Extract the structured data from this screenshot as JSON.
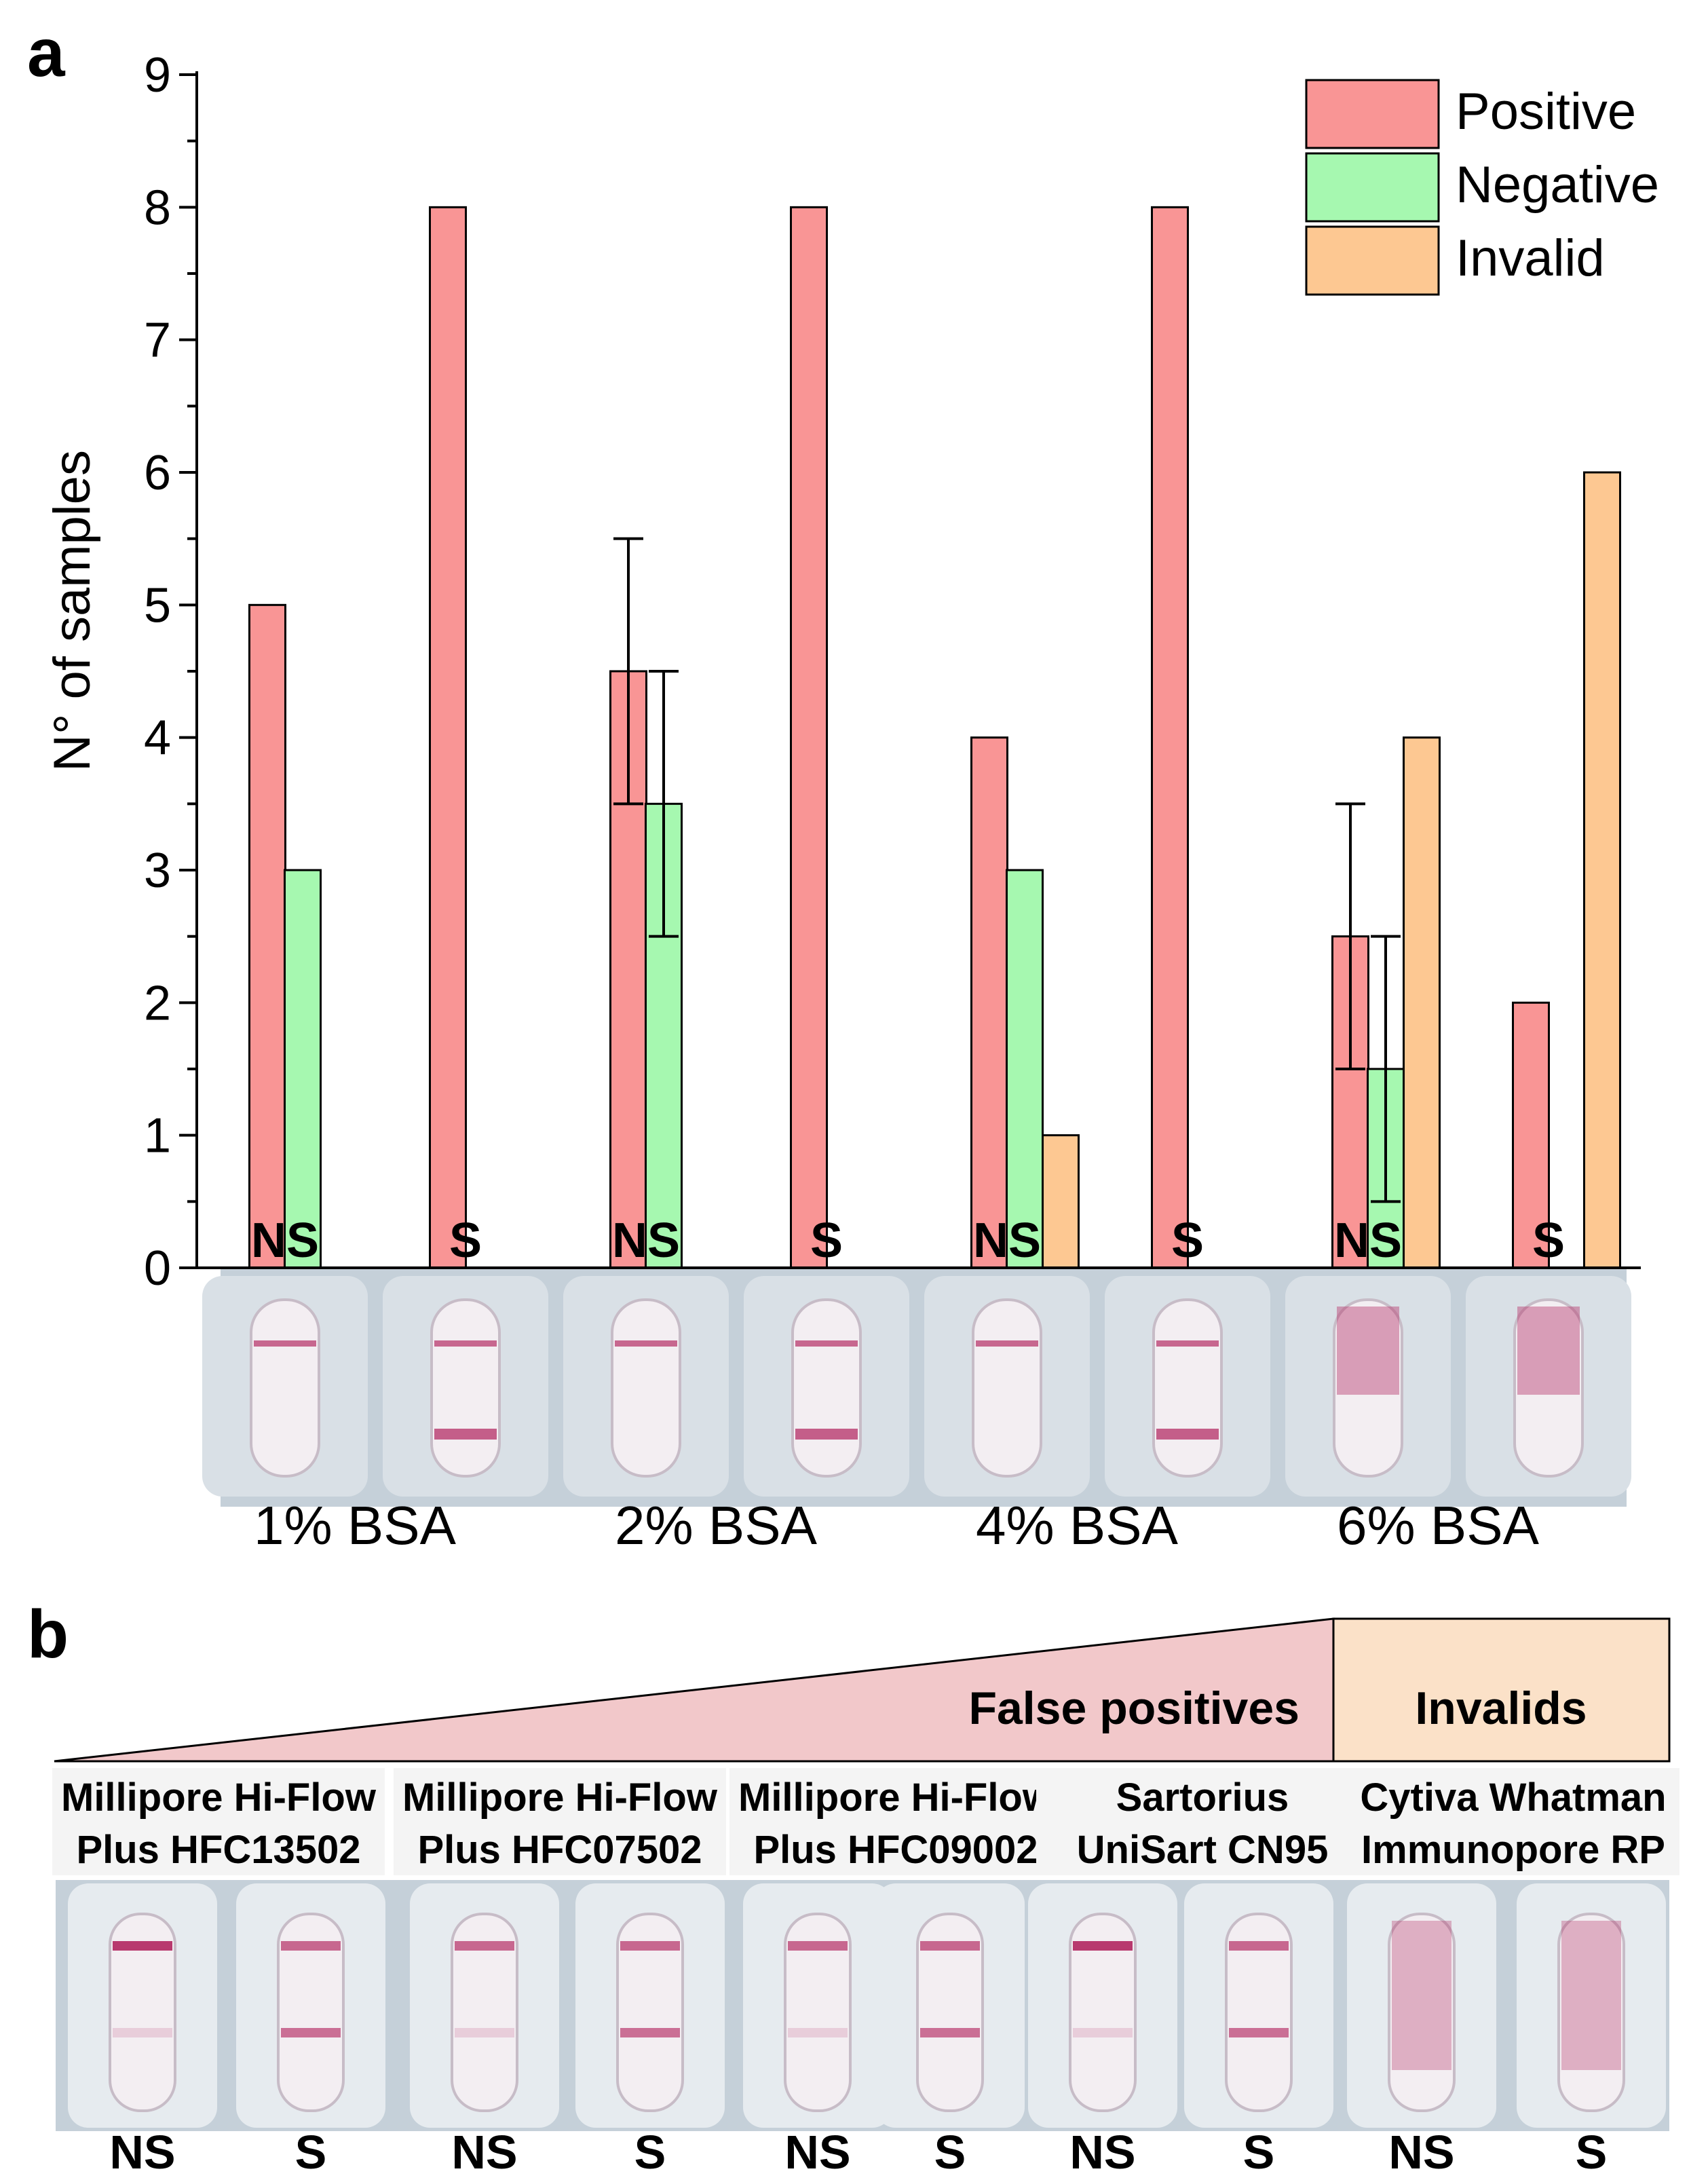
{
  "panel_a": {
    "letter": "a"
  },
  "panel_b": {
    "letter": "b",
    "false_positives_label": "False positives",
    "invalids_label": "Invalids",
    "membranes": [
      {
        "line1": "Millipore Hi-Flow",
        "line2": "Plus HFC13502"
      },
      {
        "line1": "Millipore Hi-Flow",
        "line2": "Plus HFC07502"
      },
      {
        "line1": "Millipore Hi-Flow",
        "line2": "Plus HFC09002"
      },
      {
        "line1": "Sartorius",
        "line2": "UniSart CN95"
      },
      {
        "line1": "Cytiva Whatman",
        "line2": "Immunopore RP"
      }
    ],
    "strip_labels": [
      "NS",
      "S",
      "NS",
      "S",
      "NS",
      "S",
      "NS",
      "S",
      "NS",
      "S"
    ]
  },
  "colors": {
    "positive": "#f99595",
    "negative": "#a6f8b0",
    "invalid": "#fdc892",
    "false_pos_band": "#f2c8ca",
    "invalid_band": "#fbe1c8",
    "strip_bg": "#c5d0d9",
    "test_line": "#b8396e"
  },
  "chart_data": {
    "type": "bar",
    "ylabel": "N° of samples",
    "xlabel": "",
    "ylim": [
      0,
      9
    ],
    "yticks": [
      0,
      1,
      2,
      3,
      4,
      5,
      6,
      7,
      8,
      9
    ],
    "categories": [
      "NS",
      "S",
      "NS",
      "S",
      "NS",
      "S",
      "NS",
      "S"
    ],
    "groups": [
      "1% BSA",
      "2% BSA",
      "4% BSA",
      "6% BSA"
    ],
    "series": [
      {
        "name": "Positive",
        "values": [
          5,
          8,
          4.5,
          8,
          4,
          8,
          2.5,
          2
        ],
        "errors": [
          0,
          0,
          1,
          0,
          0,
          0,
          1,
          0
        ]
      },
      {
        "name": "Negative",
        "values": [
          3,
          0,
          3.5,
          0,
          3,
          0,
          1.5,
          0
        ],
        "errors": [
          0,
          0,
          1,
          0,
          0,
          0,
          1,
          0
        ]
      },
      {
        "name": "Invalid",
        "values": [
          0,
          0,
          0,
          0,
          1,
          0,
          4,
          6
        ],
        "errors": [
          0,
          0,
          0,
          0,
          0,
          0,
          0,
          0
        ]
      }
    ],
    "legend": {
      "position": "top-right",
      "entries": [
        "Positive",
        "Negative",
        "Invalid"
      ]
    },
    "grid": false
  }
}
